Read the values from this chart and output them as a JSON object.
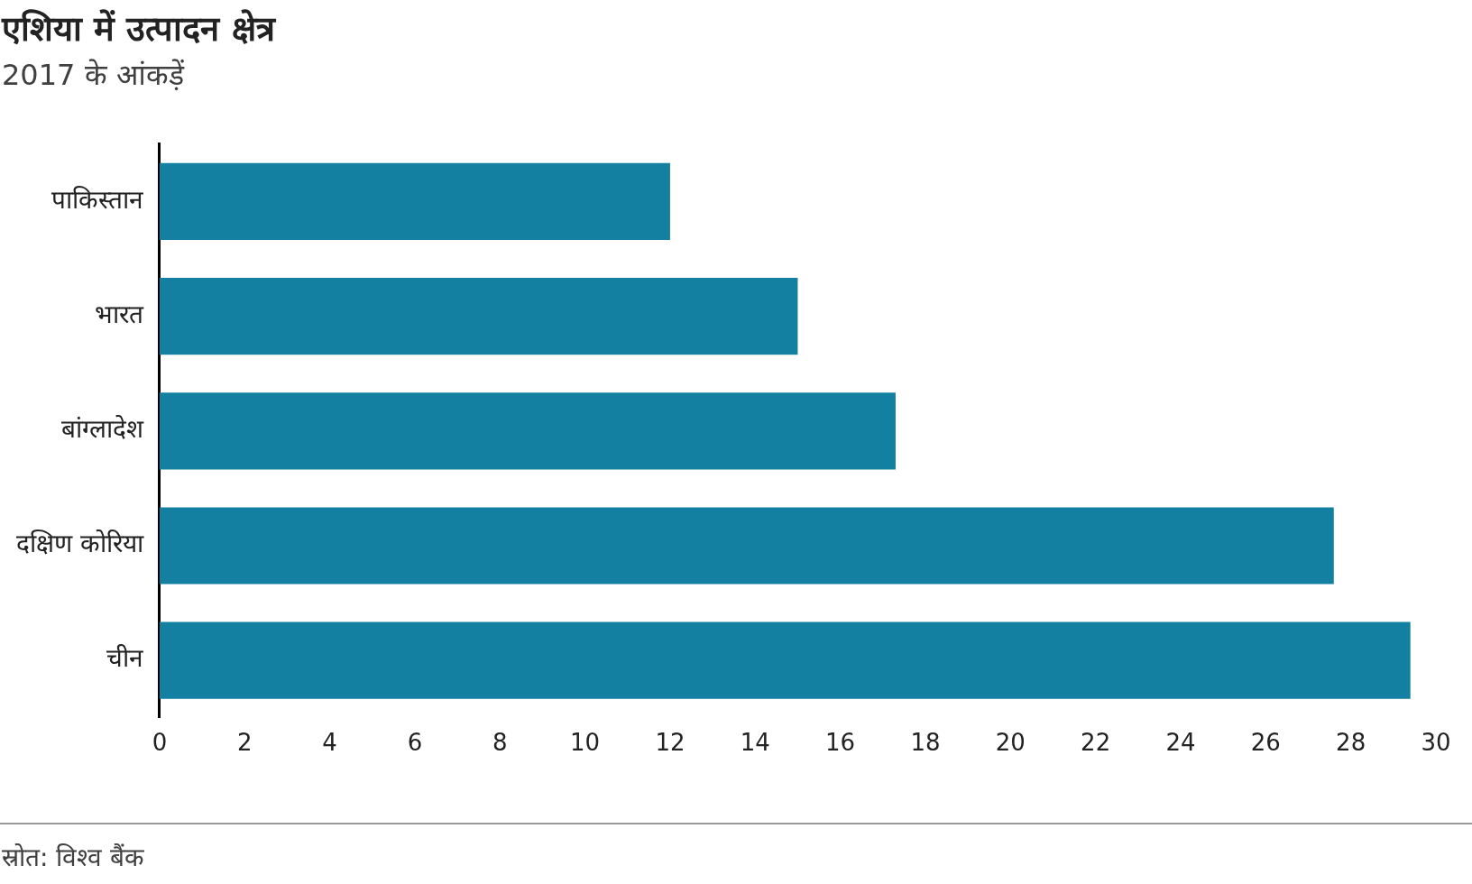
{
  "chart_data": {
    "type": "bar",
    "orientation": "horizontal",
    "title": "एशिया में उत्पादन क्षेत्र",
    "subtitle": "2017 के आंकड़ें",
    "categories": [
      "पाकिस्तान",
      "भारत",
      "बांग्लादेश",
      "दक्षिण कोरिया",
      "चीन"
    ],
    "values": [
      12.0,
      15.0,
      17.3,
      27.6,
      29.4
    ],
    "color": "#1380a1",
    "xlim": [
      0,
      30
    ],
    "xticks": [
      0,
      2,
      4,
      6,
      8,
      10,
      12,
      14,
      16,
      18,
      20,
      22,
      24,
      26,
      28,
      30
    ],
    "grid": false,
    "legend": false,
    "annotations": [
      "स्रोत: विश्व बैंक"
    ]
  }
}
